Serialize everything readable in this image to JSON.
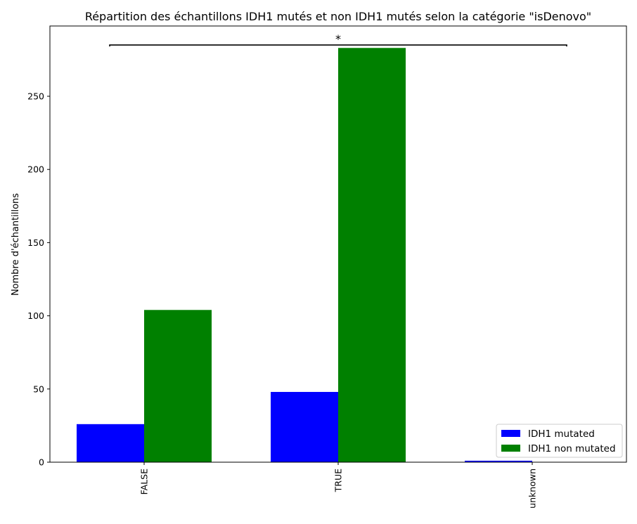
{
  "chart_data": {
    "type": "bar",
    "title": "Répartition des échantillons IDH1 mutés et non IDH1 mutés selon la catégorie \"isDenovo\"",
    "xlabel": "",
    "ylabel": "Nombre d'échantillons",
    "categories": [
      "FALSE",
      "TRUE",
      "unknown"
    ],
    "series": [
      {
        "name": "IDH1 mutated",
        "color": "#0000ff",
        "values": [
          26,
          48,
          1
        ]
      },
      {
        "name": "IDH1 non mutated",
        "color": "#008000",
        "values": [
          104,
          283,
          0
        ]
      }
    ],
    "ylim": [
      0,
      298
    ],
    "yticks": [
      0,
      50,
      100,
      150,
      200,
      250
    ],
    "legend": "lower-right",
    "annotation": {
      "text": "*",
      "from": "FALSE",
      "to": "unknown",
      "y": 285
    }
  }
}
